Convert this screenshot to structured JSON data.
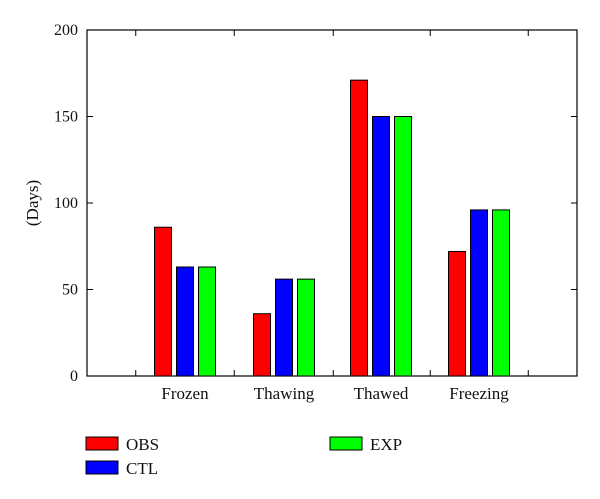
{
  "chart_data": {
    "type": "bar",
    "title": "",
    "xlabel": "",
    "ylabel": "(Days)",
    "ylim": [
      0,
      200
    ],
    "yticks": [
      0,
      50,
      100,
      150,
      200
    ],
    "categories": [
      "Frozen",
      "Thawing",
      "Thawed",
      "Freezing"
    ],
    "series": [
      {
        "name": "OBS",
        "color": "#ff0000",
        "values": [
          86,
          36,
          171,
          72
        ]
      },
      {
        "name": "CTL",
        "color": "#0000ff",
        "values": [
          63,
          56,
          150,
          96
        ]
      },
      {
        "name": "EXP",
        "color": "#00ff00",
        "values": [
          63,
          56,
          150,
          96
        ]
      }
    ],
    "grid": false,
    "legend_position": "bottom"
  }
}
